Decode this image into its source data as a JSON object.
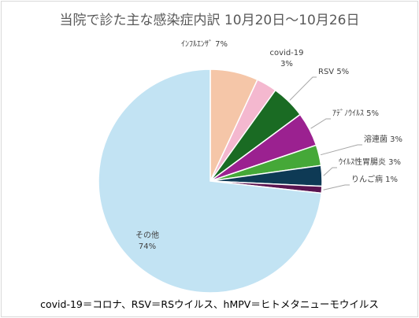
{
  "chart_data": {
    "type": "pie",
    "title": "当院で診た主な感染症内訳 10月20日～10月26日",
    "categories": [
      "ｲﾝﾌﾙｴﾝｻﾞ",
      "covid-19",
      "RSV",
      "ｱﾃﾞﾉｳｲﾙｽ",
      "溶連菌",
      "ｳｲﾙｽ性胃腸炎",
      "りんご病",
      "その他"
    ],
    "values": [
      7,
      3,
      5,
      5,
      3,
      3,
      1,
      74
    ],
    "data_labels": [
      "ｲﾝﾌﾙｴﾝｻﾞ 7%",
      "covid-19\n3%",
      "RSV 5%",
      "ｱﾃﾞﾉｳｲﾙｽ 5%",
      "溶連菌 3%",
      "ｳｲﾙｽ性胃腸炎 3%",
      "りんご病 1%",
      "その他\n74%"
    ],
    "colors": [
      "#f5c6a8",
      "#f4b8cf",
      "#1a6b23",
      "#9b2190",
      "#45a838",
      "#0e3a55",
      "#5a1450",
      "#c2e3f3"
    ]
  },
  "footnote": "covid-19＝コロナ、RSV＝RSウイルス、hMPV＝ヒトメタニューモウイルス"
}
